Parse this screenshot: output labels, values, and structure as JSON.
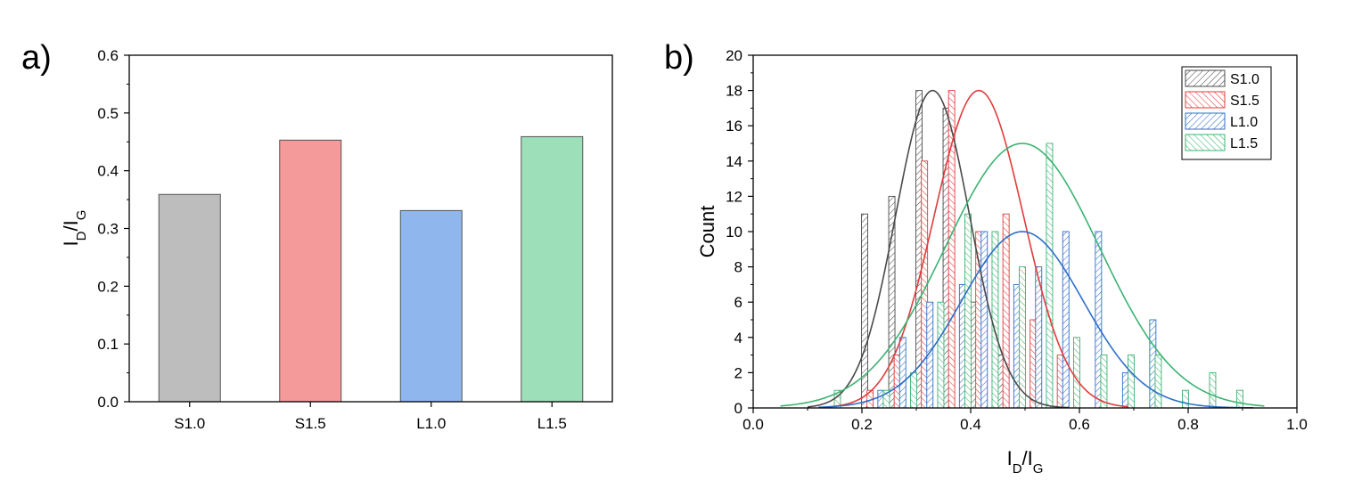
{
  "chart_data": [
    {
      "panel": "a)",
      "type": "bar",
      "categories": [
        "S1.0",
        "S1.5",
        "L1.0",
        "L1.5"
      ],
      "values": [
        0.359,
        0.453,
        0.331,
        0.459
      ],
      "colors": [
        "#bdbdbd",
        "#f59a9a",
        "#8fb7ee",
        "#9ddfb9"
      ],
      "ylabel": "I_D/I_G",
      "ylabel_main": "I",
      "ylabel_sub1": "D",
      "ylabel_sep": "/I",
      "ylabel_sub2": "G",
      "xlabel": "",
      "ylim": [
        0,
        0.6
      ],
      "yticks": [
        "0.0",
        "0.1",
        "0.2",
        "0.3",
        "0.4",
        "0.5",
        "0.6"
      ]
    },
    {
      "panel": "b)",
      "type": "histogram",
      "xlabel": "I_D/I_G",
      "xlabel_main": "I",
      "xlabel_sub1": "D",
      "xlabel_sep": "/I",
      "xlabel_sub2": "G",
      "ylabel": "Count",
      "xlim": [
        0.0,
        1.0
      ],
      "ylim": [
        0,
        20
      ],
      "xticks": [
        "0.0",
        "0.2",
        "0.4",
        "0.6",
        "0.8",
        "1.0"
      ],
      "yticks": [
        "0",
        "2",
        "4",
        "6",
        "8",
        "10",
        "12",
        "14",
        "16",
        "18",
        "20"
      ],
      "series": [
        {
          "name": "S1.0",
          "color": "#4a4a4a",
          "fit": {
            "mean": 0.33,
            "sd": 0.068,
            "peak": 18,
            "range": [
              0.1,
              0.58
            ]
          },
          "bins": [
            {
              "x": 0.205,
              "count": 11
            },
            {
              "x": 0.255,
              "count": 12
            },
            {
              "x": 0.305,
              "count": 18
            },
            {
              "x": 0.355,
              "count": 17
            },
            {
              "x": 0.405,
              "count": 6
            },
            {
              "x": 0.455,
              "count": 3
            }
          ]
        },
        {
          "name": "S1.5",
          "color": "#e03c3c",
          "fit": {
            "mean": 0.415,
            "sd": 0.082,
            "peak": 18,
            "range": [
              0.13,
              0.69
            ]
          },
          "bins": [
            {
              "x": 0.215,
              "count": 1
            },
            {
              "x": 0.265,
              "count": 3
            },
            {
              "x": 0.315,
              "count": 14
            },
            {
              "x": 0.365,
              "count": 18
            },
            {
              "x": 0.415,
              "count": 10
            },
            {
              "x": 0.465,
              "count": 11
            },
            {
              "x": 0.515,
              "count": 5
            },
            {
              "x": 0.565,
              "count": 3
            }
          ]
        },
        {
          "name": "L1.0",
          "color": "#2d6ec9",
          "fit": {
            "mean": 0.495,
            "sd": 0.112,
            "peak": 10,
            "range": [
              0.12,
              0.92
            ]
          },
          "bins": [
            {
              "x": 0.235,
              "count": 1
            },
            {
              "x": 0.275,
              "count": 4
            },
            {
              "x": 0.325,
              "count": 6
            },
            {
              "x": 0.385,
              "count": 7
            },
            {
              "x": 0.425,
              "count": 10
            },
            {
              "x": 0.485,
              "count": 7
            },
            {
              "x": 0.525,
              "count": 8
            },
            {
              "x": 0.575,
              "count": 10
            },
            {
              "x": 0.635,
              "count": 10
            },
            {
              "x": 0.685,
              "count": 2
            },
            {
              "x": 0.735,
              "count": 5
            }
          ]
        },
        {
          "name": "L1.5",
          "color": "#3cb371",
          "fit": {
            "mean": 0.495,
            "sd": 0.142,
            "peak": 15,
            "range": [
              0.05,
              0.94
            ]
          },
          "bins": [
            {
              "x": 0.155,
              "count": 1
            },
            {
              "x": 0.245,
              "count": 1
            },
            {
              "x": 0.295,
              "count": 2
            },
            {
              "x": 0.345,
              "count": 6
            },
            {
              "x": 0.395,
              "count": 11
            },
            {
              "x": 0.445,
              "count": 10
            },
            {
              "x": 0.495,
              "count": 8
            },
            {
              "x": 0.545,
              "count": 15
            },
            {
              "x": 0.595,
              "count": 4
            },
            {
              "x": 0.645,
              "count": 3
            },
            {
              "x": 0.695,
              "count": 3
            },
            {
              "x": 0.745,
              "count": 3
            },
            {
              "x": 0.795,
              "count": 1
            },
            {
              "x": 0.845,
              "count": 2
            },
            {
              "x": 0.895,
              "count": 1
            }
          ]
        }
      ],
      "legend": [
        "S1.0",
        "S1.5",
        "L1.0",
        "L1.5"
      ]
    }
  ]
}
